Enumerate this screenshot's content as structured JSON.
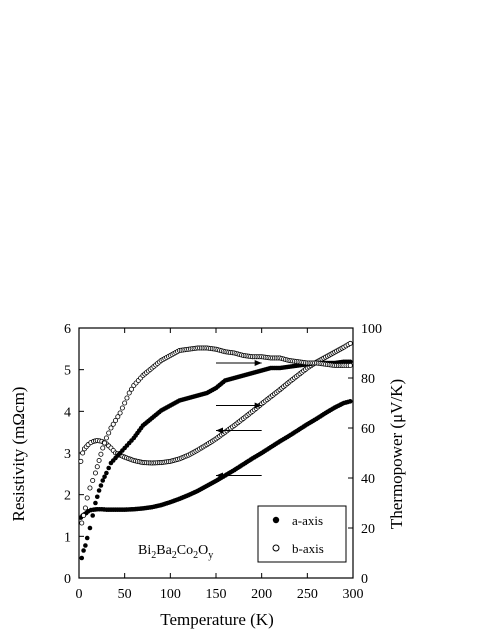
{
  "chart_data": {
    "type": "scatter",
    "xlabel": "Temperature (K)",
    "ylabel_left": "Resistivity (mΩcm)",
    "ylabel_right": "Thermopower (μV/K)",
    "xlim": [
      0,
      300
    ],
    "ylim_left": [
      0,
      6
    ],
    "ylim_right": [
      0,
      100
    ],
    "x_ticks": [
      "0",
      "50",
      "100",
      "150",
      "200",
      "250",
      "300"
    ],
    "y_left_ticks": [
      "0",
      "1",
      "2",
      "3",
      "4",
      "5",
      "6"
    ],
    "y_right_ticks": [
      "0",
      "20",
      "40",
      "60",
      "80",
      "100"
    ],
    "annotation": {
      "main": "Bi",
      "sub1": "2",
      "mid1": "Ba",
      "sub2": "2",
      "mid2": "Co",
      "sub3": "2",
      "mid3": "O",
      "sub4": "y"
    },
    "legend": [
      {
        "label": "a-axis",
        "marker": "filled-circle"
      },
      {
        "label": "b-axis",
        "marker": "open-circle"
      }
    ],
    "grid": false,
    "legend_position": "bottom-right",
    "arrows": [
      {
        "x_from": 150,
        "x_to": 200,
        "y_right": 86,
        "direction": "right"
      },
      {
        "x_from": 150,
        "x_to": 200,
        "y_right": 69,
        "direction": "right"
      },
      {
        "x_from": 150,
        "x_to": 200,
        "y_right": 59,
        "direction": "left"
      },
      {
        "x_from": 150,
        "x_to": 200,
        "y_right": 41,
        "direction": "left"
      }
    ],
    "series": [
      {
        "name": "a-axis",
        "quantity": "resistivity",
        "axis": "left",
        "marker": "filled",
        "x": [
          2,
          4,
          6,
          8,
          10,
          13,
          16,
          20,
          25,
          30,
          40,
          50,
          60,
          70,
          80,
          90,
          100,
          110,
          120,
          130,
          140,
          150,
          160,
          170,
          180,
          190,
          200,
          210,
          220,
          230,
          240,
          250,
          260,
          270,
          280,
          290,
          297
        ],
        "y": [
          1.45,
          1.5,
          1.53,
          1.56,
          1.6,
          1.63,
          1.64,
          1.65,
          1.65,
          1.64,
          1.64,
          1.64,
          1.65,
          1.67,
          1.7,
          1.75,
          1.82,
          1.9,
          1.99,
          2.09,
          2.21,
          2.33,
          2.46,
          2.59,
          2.73,
          2.87,
          3.0,
          3.14,
          3.28,
          3.41,
          3.55,
          3.69,
          3.82,
          3.96,
          4.09,
          4.2,
          4.24
        ]
      },
      {
        "name": "b-axis",
        "quantity": "resistivity",
        "axis": "left",
        "marker": "open",
        "x": [
          2,
          4,
          6,
          8,
          10,
          13,
          16,
          20,
          25,
          30,
          35,
          40,
          50,
          60,
          70,
          80,
          90,
          100,
          110,
          120,
          130,
          140,
          150,
          160,
          170,
          180,
          190,
          200,
          210,
          220,
          230,
          240,
          250,
          260,
          270,
          280,
          290,
          297
        ],
        "y": [
          2.8,
          3.0,
          3.1,
          3.15,
          3.2,
          3.25,
          3.28,
          3.3,
          3.28,
          3.22,
          3.12,
          3.0,
          2.9,
          2.82,
          2.77,
          2.76,
          2.77,
          2.8,
          2.86,
          2.95,
          3.07,
          3.2,
          3.34,
          3.5,
          3.66,
          3.83,
          4.0,
          4.18,
          4.35,
          4.52,
          4.7,
          4.87,
          5.04,
          5.18,
          5.3,
          5.42,
          5.54,
          5.63
        ]
      },
      {
        "name": "a-axis",
        "quantity": "thermopower",
        "axis": "right",
        "marker": "filled",
        "x": [
          3,
          5,
          7,
          9,
          12,
          15,
          18,
          22,
          26,
          30,
          35,
          40,
          45,
          50,
          55,
          60,
          70,
          80,
          90,
          100,
          110,
          120,
          130,
          140,
          150,
          160,
          170,
          180,
          190,
          200,
          210,
          220,
          230,
          240,
          250,
          260,
          270,
          280,
          290,
          297
        ],
        "y": [
          8,
          11,
          13,
          16,
          20,
          25,
          30,
          35,
          39,
          42,
          46,
          48,
          50,
          52,
          54,
          56,
          61,
          64,
          67,
          69,
          71,
          72,
          73,
          74,
          76,
          79,
          80,
          81,
          82,
          83,
          84,
          84,
          84.5,
          85,
          85.5,
          86,
          86,
          86,
          86.5,
          86.5
        ]
      },
      {
        "name": "b-axis",
        "quantity": "thermopower",
        "axis": "right",
        "marker": "open",
        "x": [
          3,
          5,
          7,
          9,
          12,
          15,
          18,
          22,
          26,
          30,
          35,
          40,
          45,
          50,
          55,
          60,
          65,
          70,
          80,
          90,
          100,
          110,
          120,
          130,
          140,
          150,
          160,
          170,
          180,
          190,
          200,
          210,
          220,
          230,
          240,
          250,
          260,
          270,
          280,
          290,
          297
        ],
        "y": [
          22,
          25,
          28,
          32,
          36,
          39,
          42,
          47,
          52,
          56,
          60,
          63,
          66,
          70,
          74,
          77,
          79,
          81,
          84,
          87,
          89,
          91,
          91.5,
          92,
          92,
          91.5,
          90.5,
          90,
          89,
          88.5,
          88.5,
          88,
          88,
          87,
          86.5,
          86,
          86,
          85.5,
          85,
          85,
          85
        ]
      }
    ]
  }
}
